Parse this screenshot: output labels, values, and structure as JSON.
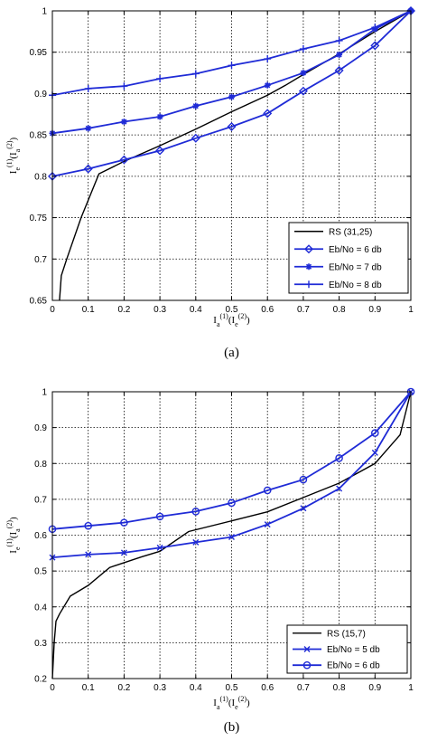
{
  "chart_data": [
    {
      "type": "line",
      "caption": "(a)",
      "xlabel": "I_a^(1)(I_e^(2))",
      "ylabel": "I_e^(1)(I_a^(2))",
      "xlim": [
        0,
        1
      ],
      "ylim": [
        0.65,
        1
      ],
      "xticks": [
        "0",
        "0.1",
        "0.2",
        "0.3",
        "0.4",
        "0.5",
        "0.6",
        "0.7",
        "0.8",
        "0.9",
        "1"
      ],
      "yticks": [
        "0.65",
        "0.7",
        "0.75",
        "0.8",
        "0.85",
        "0.9",
        "0.95",
        "1"
      ],
      "grid": true,
      "legend_position": "bottom-right",
      "series": [
        {
          "name": "RS (31,25)",
          "color": "#000000",
          "marker": "none",
          "x": [
            0.02,
            0.025,
            0.04,
            0.08,
            0.13,
            0.2,
            0.3,
            0.4,
            0.5,
            0.6,
            0.65,
            0.7,
            0.8,
            0.9,
            1.0
          ],
          "y": [
            0.65,
            0.68,
            0.7,
            0.75,
            0.803,
            0.818,
            0.837,
            0.857,
            0.878,
            0.898,
            0.91,
            0.923,
            0.948,
            0.975,
            1.0
          ]
        },
        {
          "name": "Eb/No = 6 db",
          "color": "#1f2bd6",
          "marker": "diamond",
          "x": [
            0,
            0.1,
            0.2,
            0.3,
            0.4,
            0.5,
            0.6,
            0.7,
            0.8,
            0.9,
            1.0
          ],
          "y": [
            0.8,
            0.809,
            0.82,
            0.831,
            0.846,
            0.86,
            0.876,
            0.903,
            0.928,
            0.958,
            1.0
          ]
        },
        {
          "name": "Eb/No = 7 db",
          "color": "#1f2bd6",
          "marker": "star",
          "x": [
            0,
            0.1,
            0.2,
            0.3,
            0.4,
            0.5,
            0.6,
            0.7,
            0.8,
            0.9,
            1.0
          ],
          "y": [
            0.852,
            0.858,
            0.866,
            0.872,
            0.885,
            0.896,
            0.91,
            0.925,
            0.947,
            0.978,
            1.0
          ]
        },
        {
          "name": "Eb/No = 8 db",
          "color": "#1f2bd6",
          "marker": "plus",
          "x": [
            0,
            0.1,
            0.2,
            0.3,
            0.4,
            0.5,
            0.6,
            0.7,
            0.8,
            0.9,
            1.0
          ],
          "y": [
            0.898,
            0.906,
            0.909,
            0.918,
            0.924,
            0.934,
            0.942,
            0.954,
            0.964,
            0.98,
            1.0
          ]
        }
      ]
    },
    {
      "type": "line",
      "caption": "(b)",
      "xlabel": "I_a^(1)(I_e^(2))",
      "ylabel": "I_e^(1)(I_a^(2))",
      "xlim": [
        0,
        1
      ],
      "ylim": [
        0.2,
        1
      ],
      "xticks": [
        "0",
        "0.1",
        "0.2",
        "0.3",
        "0.4",
        "0.5",
        "0.6",
        "0.7",
        "0.8",
        "0.9",
        "1"
      ],
      "yticks": [
        "0.2",
        "0.3",
        "0.4",
        "0.5",
        "0.6",
        "0.7",
        "0.8",
        "0.9",
        "1"
      ],
      "grid": true,
      "legend_position": "bottom-right",
      "series": [
        {
          "name": "RS (15,7)",
          "color": "#000000",
          "marker": "none",
          "x": [
            0.0,
            0.005,
            0.01,
            0.02,
            0.05,
            0.1,
            0.16,
            0.25,
            0.3,
            0.38,
            0.5,
            0.6,
            0.7,
            0.8,
            0.9,
            0.97,
            1.0
          ],
          "y": [
            0.2,
            0.3,
            0.36,
            0.38,
            0.43,
            0.46,
            0.51,
            0.54,
            0.555,
            0.61,
            0.64,
            0.665,
            0.705,
            0.745,
            0.8,
            0.88,
            1.0
          ]
        },
        {
          "name": "Eb/No = 5 db",
          "color": "#1f2bd6",
          "marker": "x",
          "x": [
            0,
            0.1,
            0.2,
            0.3,
            0.4,
            0.5,
            0.6,
            0.7,
            0.8,
            0.9,
            1.0
          ],
          "y": [
            0.538,
            0.546,
            0.551,
            0.565,
            0.58,
            0.595,
            0.63,
            0.675,
            0.73,
            0.83,
            1.0
          ]
        },
        {
          "name": "Eb/No = 6 db",
          "color": "#1f2bd6",
          "marker": "circle",
          "x": [
            0,
            0.1,
            0.2,
            0.3,
            0.4,
            0.5,
            0.6,
            0.7,
            0.8,
            0.9,
            1.0
          ],
          "y": [
            0.617,
            0.626,
            0.635,
            0.652,
            0.666,
            0.69,
            0.725,
            0.755,
            0.815,
            0.885,
            1.0
          ]
        }
      ]
    }
  ]
}
